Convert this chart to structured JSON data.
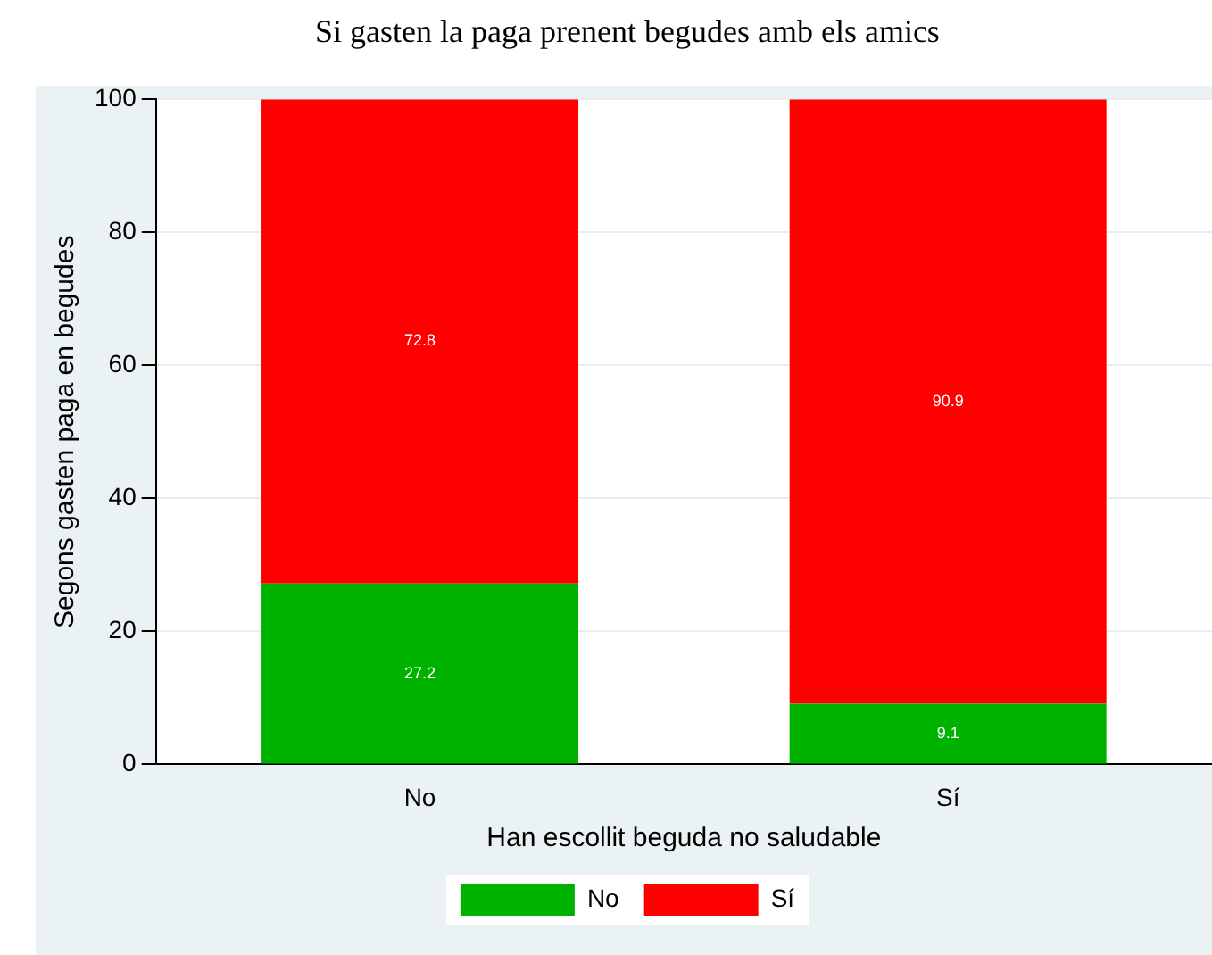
{
  "chart_data": {
    "type": "bar",
    "title": "Si gasten la paga prenent begudes amb els amics",
    "xlabel": "Han escollit beguda no saludable",
    "ylabel": "Segons gasten paga en begudes",
    "categories": [
      "No",
      "Sí"
    ],
    "stacked": true,
    "series": [
      {
        "name": "No",
        "color": "#00b200",
        "values": [
          27.2,
          9.1
        ]
      },
      {
        "name": "Sí",
        "color": "#ff0000",
        "values": [
          72.8,
          90.9
        ]
      }
    ],
    "ylim": [
      0,
      100
    ],
    "yticks": [
      0,
      20,
      40,
      60,
      80,
      100
    ],
    "grid": "y",
    "legend": "bottom",
    "data_labels": true
  }
}
